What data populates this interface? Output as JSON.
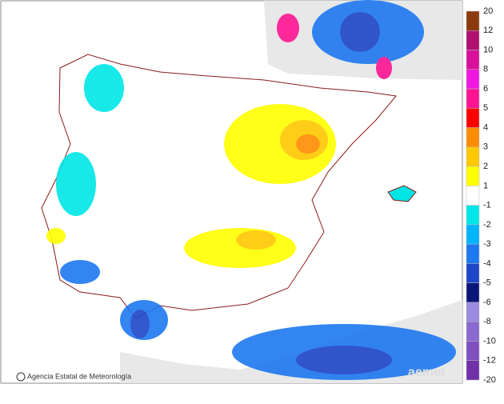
{
  "legend": {
    "labels": [
      "20",
      "12",
      "10",
      "8",
      "6",
      "5",
      "4",
      "3",
      "2",
      "1",
      "-1",
      "-2",
      "-3",
      "-4",
      "-5",
      "-6",
      "-8",
      "-10",
      "-12",
      "-20"
    ],
    "colors": [
      "#8b3a0f",
      "#b0106e",
      "#d8109a",
      "#f018e0",
      "#ff1493",
      "#ff0000",
      "#ff8c00",
      "#ffc800",
      "#ffff00",
      "#ffffff",
      "#00e6e6",
      "#00b4ff",
      "#1e78f0",
      "#1e46c8",
      "#0a1678",
      "#9a8ae0",
      "#8a6ad0",
      "#8050c0",
      "#7030a8"
    ]
  },
  "credit": "Agencia Estatal de Meteorología",
  "watermark": "aemet"
}
